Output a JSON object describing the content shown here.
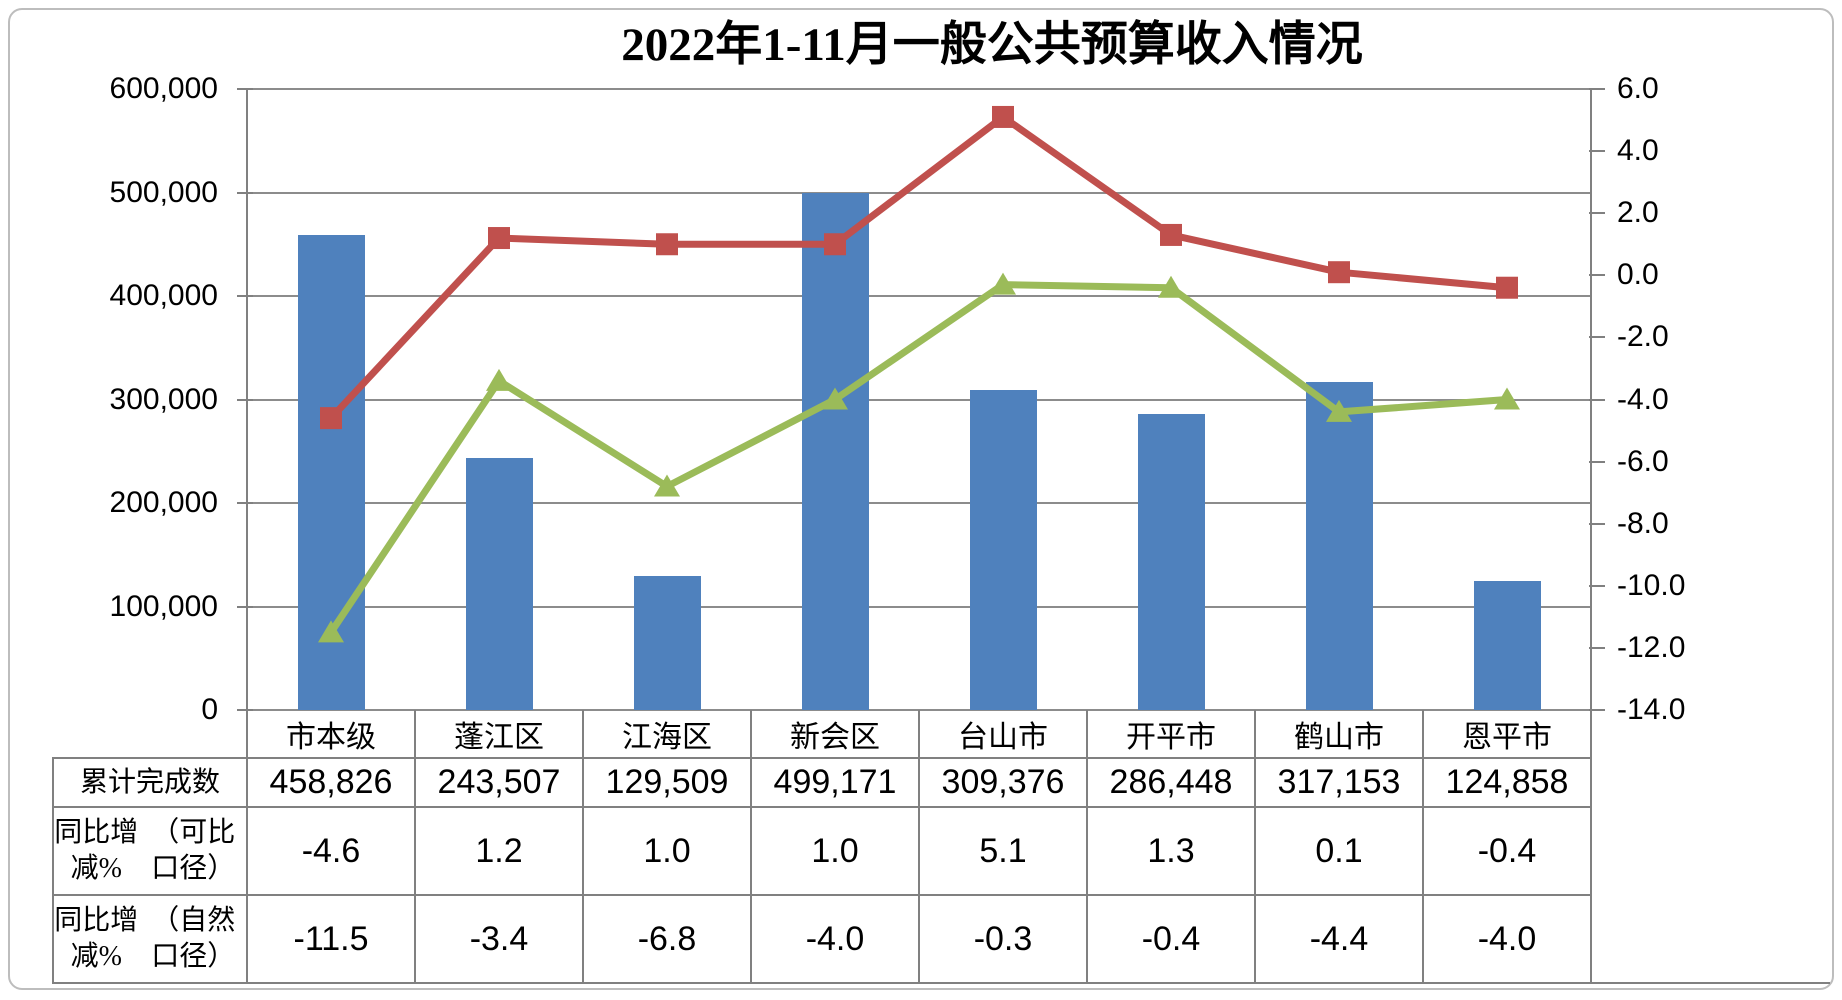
{
  "title": "2022年1-11月一般公共预算收入情况",
  "chart_data": {
    "type": "combo-bar-line-with-data-table",
    "categories": [
      "市本级",
      "蓬江区",
      "江海区",
      "新会区",
      "台山市",
      "开平市",
      "鹤山市",
      "恩平市"
    ],
    "series": [
      {
        "name_lines": [
          "累计完成数"
        ],
        "type": "bar",
        "axis": "left",
        "color": "#4F81BD",
        "values": [
          458826,
          243507,
          129509,
          499171,
          309376,
          286448,
          317153,
          124858
        ],
        "value_labels": [
          "458,826",
          "243,507",
          "129,509",
          "499,171",
          "309,376",
          "286,448",
          "317,153",
          "124,858"
        ]
      },
      {
        "name_lines": [
          "同比增减%",
          "（可比口径）"
        ],
        "type": "line",
        "marker": "square",
        "axis": "right",
        "color": "#C0504D",
        "values": [
          -4.6,
          1.2,
          1.0,
          1.0,
          5.1,
          1.3,
          0.1,
          -0.4
        ],
        "value_labels": [
          "-4.6",
          "1.2",
          "1.0",
          "1.0",
          "5.1",
          "1.3",
          "0.1",
          "-0.4"
        ]
      },
      {
        "name_lines": [
          "同比增减%",
          "（自然口径）"
        ],
        "type": "line",
        "marker": "triangle",
        "axis": "right",
        "color": "#9BBB59",
        "values": [
          -11.5,
          -3.4,
          -6.8,
          -4.0,
          -0.3,
          -0.4,
          -4.4,
          -4.0
        ],
        "value_labels": [
          "-11.5",
          "-3.4",
          "-6.8",
          "-4.0",
          "-0.3",
          "-0.4",
          "-4.4",
          "-4.0"
        ]
      }
    ],
    "left_axis": {
      "min": 0,
      "max": 600000,
      "tick_labels": [
        "600,000",
        "500,000",
        "400,000",
        "300,000",
        "200,000",
        "100,000",
        "0"
      ]
    },
    "right_axis": {
      "min": -14.0,
      "max": 6.0,
      "tick_labels": [
        "6.0",
        "4.0",
        "2.0",
        "0.0",
        "-2.0",
        "-4.0",
        "-6.0",
        "-8.0",
        "-10.0",
        "-12.0",
        "-14.0"
      ]
    },
    "grid": true,
    "legend": "none (data table below chart)",
    "colors": {
      "bar_blue": "#4F81BD",
      "line_red": "#C0504D",
      "line_green": "#9BBB59",
      "gridline_gray": "#8c8c8c",
      "border_gray": "#808080"
    }
  }
}
